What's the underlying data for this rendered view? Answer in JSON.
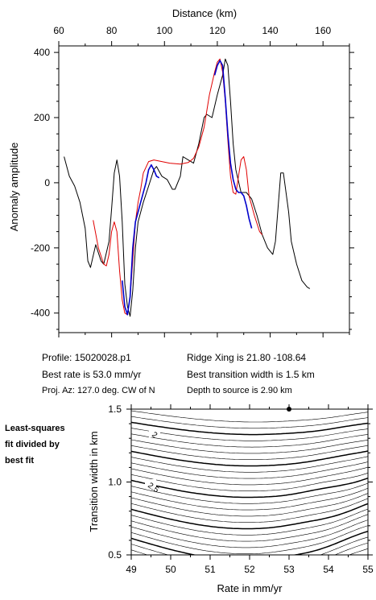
{
  "chart_data": [
    {
      "type": "line",
      "xlabel_top": "Distance (km)",
      "ylabel": "Anomaly amplitude",
      "xlim": [
        60,
        170
      ],
      "ylim": [
        -460,
        420
      ],
      "xticks": [
        60,
        80,
        100,
        120,
        140,
        160
      ],
      "yticks": [
        -400,
        -200,
        0,
        200,
        400
      ],
      "series": [
        {
          "color": "#000000",
          "points": [
            [
              62,
              80
            ],
            [
              64,
              20
            ],
            [
              66,
              -10
            ],
            [
              68,
              -60
            ],
            [
              70,
              -140
            ],
            [
              71,
              -240
            ],
            [
              72,
              -260
            ],
            [
              74,
              -190
            ],
            [
              76,
              -240
            ],
            [
              77,
              -250
            ],
            [
              79,
              -180
            ],
            [
              80,
              -80
            ],
            [
              81,
              30
            ],
            [
              82,
              70
            ],
            [
              83,
              20
            ],
            [
              84,
              -120
            ],
            [
              85,
              -310
            ],
            [
              86,
              -380
            ],
            [
              87,
              -410
            ],
            [
              88,
              -330
            ],
            [
              89,
              -200
            ],
            [
              90,
              -120
            ],
            [
              92,
              -60
            ],
            [
              94,
              -10
            ],
            [
              96,
              40
            ],
            [
              97,
              50
            ],
            [
              99,
              20
            ],
            [
              101,
              10
            ],
            [
              103,
              -20
            ],
            [
              104,
              -20
            ],
            [
              106,
              20
            ],
            [
              107,
              80
            ],
            [
              109,
              70
            ],
            [
              111,
              60
            ],
            [
              113,
              120
            ],
            [
              115,
              200
            ],
            [
              116,
              210
            ],
            [
              118,
              200
            ],
            [
              120,
              270
            ],
            [
              122,
              330
            ],
            [
              123,
              380
            ],
            [
              124,
              360
            ],
            [
              125,
              250
            ],
            [
              126,
              120
            ],
            [
              127,
              40
            ],
            [
              129,
              -30
            ],
            [
              131,
              -30
            ],
            [
              133,
              -50
            ],
            [
              135,
              -100
            ],
            [
              137,
              -160
            ],
            [
              139,
              -200
            ],
            [
              141,
              -220
            ],
            [
              142,
              -180
            ],
            [
              144,
              30
            ],
            [
              145,
              30
            ],
            [
              147,
              -90
            ],
            [
              148,
              -180
            ],
            [
              150,
              -250
            ],
            [
              152,
              -300
            ],
            [
              154,
              -320
            ],
            [
              155,
              -325
            ]
          ]
        },
        {
          "color": "#e00000",
          "points": [
            [
              73,
              -115
            ],
            [
              75,
              -200
            ],
            [
              77,
              -250
            ],
            [
              78,
              -255
            ],
            [
              79,
              -220
            ],
            [
              80,
              -150
            ],
            [
              81,
              -120
            ],
            [
              82,
              -150
            ],
            [
              83,
              -270
            ],
            [
              84,
              -360
            ],
            [
              85,
              -400
            ],
            [
              86,
              -405
            ],
            [
              87,
              -350
            ],
            [
              88,
              -240
            ],
            [
              89,
              -120
            ],
            [
              90,
              -60
            ],
            [
              91,
              -20
            ],
            [
              92,
              30
            ],
            [
              94,
              65
            ],
            [
              96,
              70
            ],
            [
              99,
              65
            ],
            [
              102,
              60
            ],
            [
              106,
              57
            ],
            [
              109,
              62
            ],
            [
              111,
              75
            ],
            [
              113,
              110
            ],
            [
              115,
              170
            ],
            [
              117,
              270
            ],
            [
              119,
              340
            ],
            [
              120,
              370
            ],
            [
              121,
              380
            ],
            [
              122,
              340
            ],
            [
              123,
              250
            ],
            [
              124,
              130
            ],
            [
              125,
              20
            ],
            [
              126,
              -30
            ],
            [
              127,
              -35
            ],
            [
              128,
              20
            ],
            [
              129,
              70
            ],
            [
              130,
              80
            ],
            [
              131,
              40
            ],
            [
              132,
              -40
            ],
            [
              134,
              -100
            ],
            [
              136,
              -150
            ],
            [
              137,
              -160
            ]
          ]
        },
        {
          "color": "#0000cc",
          "points": [
            [
              84,
              -300
            ],
            [
              85,
              -380
            ],
            [
              86,
              -405
            ],
            [
              87,
              -350
            ],
            [
              88,
              -200
            ],
            [
              89,
              -120
            ],
            [
              91,
              -60
            ],
            [
              93,
              0
            ],
            [
              94,
              40
            ],
            [
              95,
              55
            ],
            [
              96,
              40
            ],
            [
              97,
              20
            ],
            [
              98,
              15
            ]
          ]
        },
        {
          "color": "#0000cc",
          "points": [
            [
              119,
              330
            ],
            [
              120,
              360
            ],
            [
              121,
              375
            ],
            [
              122,
              360
            ],
            [
              123,
              260
            ],
            [
              124,
              150
            ],
            [
              125,
              60
            ],
            [
              126,
              10
            ],
            [
              127,
              -20
            ],
            [
              128,
              -30
            ],
            [
              129,
              -30
            ],
            [
              130,
              -40
            ],
            [
              131,
              -70
            ],
            [
              132,
              -110
            ],
            [
              133,
              -140
            ]
          ]
        }
      ]
    },
    {
      "type": "contour",
      "xlabel": "Rate in mm/yr",
      "ylabel": "Transition width in km",
      "xlim": [
        49,
        55
      ],
      "ylim": [
        0.5,
        1.5
      ],
      "xticks": [
        49,
        50,
        51,
        52,
        53,
        54,
        55
      ],
      "yticks": [
        0.5,
        1.0,
        1.5
      ],
      "contour_labels": [
        "2",
        "2.5"
      ],
      "best_fit": {
        "rate": 53.0,
        "width": 1.5
      }
    }
  ],
  "info": {
    "profile": "Profile: 15020028.p1",
    "ridge_xing": "Ridge Xing is 21.80 -108.64",
    "best_rate": "Best rate is 53.0 mm/yr",
    "best_width": "Best transition width is 1.5 km",
    "proj_az": "Proj. Az: 127.0 deg. CW of N",
    "depth": "Depth to source is   2.90 km"
  },
  "side_caption": [
    "Least-squares",
    "fit divided by",
    "best fit"
  ]
}
